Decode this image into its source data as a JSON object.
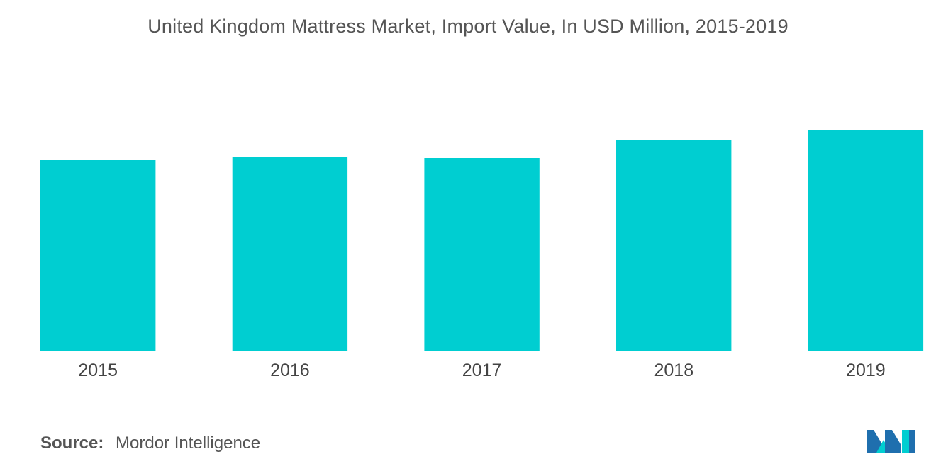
{
  "chart_data": {
    "type": "bar",
    "title": "United Kingdom Mattress Market, Import Value, In USD Million, 2015-2019",
    "categories": [
      "2015",
      "2016",
      "2017",
      "2018",
      "2019"
    ],
    "values": [
      270,
      275,
      273,
      299,
      312
    ],
    "xlabel": "",
    "ylabel": "",
    "ylim": [
      0,
      312
    ],
    "bar_color": "#00CED1",
    "grid": false,
    "legend": "none"
  },
  "source": {
    "label": "Source:",
    "text": "Mordor Intelligence"
  },
  "logo": {
    "icon": "mordor-intelligence-logo-icon",
    "colors": [
      "#1F6FAE",
      "#00CED1"
    ]
  }
}
